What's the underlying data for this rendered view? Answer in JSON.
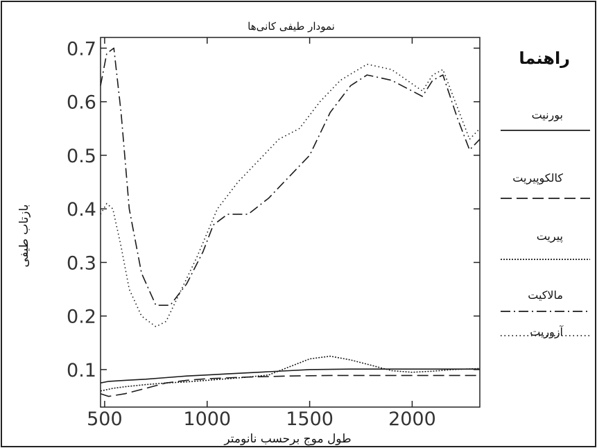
{
  "chart_data": {
    "type": "line",
    "title": "نمودار طیفی کانی‌ها",
    "xlabel": "طول موج برحسب نانومتر",
    "ylabel": "بازتاب طیفی",
    "xlim": [
      480,
      2330
    ],
    "ylim": [
      0.03,
      0.72
    ],
    "xticks": [
      500,
      1000,
      1500,
      2000
    ],
    "yticks": [
      0.1,
      0.2,
      0.3,
      0.4,
      0.5,
      0.6,
      0.7
    ],
    "xtick_labels": [
      "500",
      "1000",
      "1500",
      "2000"
    ],
    "ytick_labels": [
      "0.1",
      "0.2",
      "0.3",
      "0.4",
      "0.5",
      "0.6",
      "0.7"
    ],
    "legend_title": "راهنما",
    "legend_position": "right",
    "grid": false,
    "series": [
      {
        "name": "بورنیت",
        "style": "solid",
        "color": "#1a1a1a",
        "x": [
          480,
          520,
          600,
          700,
          800,
          900,
          1000,
          1100,
          1200,
          1300,
          1400,
          1500,
          1700,
          1900,
          2100,
          2330
        ],
        "y": [
          0.075,
          0.078,
          0.08,
          0.082,
          0.085,
          0.088,
          0.09,
          0.092,
          0.094,
          0.096,
          0.098,
          0.1,
          0.101,
          0.101,
          0.101,
          0.101
        ]
      },
      {
        "name": "کالکوپیریت",
        "style": "longdash",
        "color": "#1a1a1a",
        "x": [
          480,
          520,
          600,
          700,
          800,
          900,
          1000,
          1200,
          1400,
          1600,
          1800,
          2000,
          2330
        ],
        "y": [
          0.055,
          0.05,
          0.055,
          0.065,
          0.075,
          0.08,
          0.083,
          0.086,
          0.088,
          0.089,
          0.089,
          0.089,
          0.089
        ]
      },
      {
        "name": "پیریت",
        "style": "dotted",
        "color": "#1a1a1a",
        "x": [
          480,
          540,
          600,
          700,
          800,
          900,
          1000,
          1100,
          1200,
          1300,
          1400,
          1500,
          1600,
          1700,
          1800,
          1900,
          2000,
          2100,
          2200,
          2330
        ],
        "y": [
          0.06,
          0.065,
          0.068,
          0.072,
          0.075,
          0.077,
          0.08,
          0.083,
          0.086,
          0.09,
          0.105,
          0.12,
          0.125,
          0.118,
          0.108,
          0.098,
          0.095,
          0.097,
          0.1,
          0.102
        ]
      },
      {
        "name": "مالاکیت",
        "style": "dashdot",
        "color": "#1a1a1a",
        "x": [
          480,
          510,
          545,
          580,
          620,
          680,
          750,
          820,
          900,
          980,
          1030,
          1100,
          1200,
          1300,
          1400,
          1500,
          1600,
          1700,
          1780,
          1900,
          2050,
          2100,
          2150,
          2220,
          2280,
          2330
        ],
        "y": [
          0.63,
          0.69,
          0.7,
          0.58,
          0.4,
          0.28,
          0.22,
          0.22,
          0.26,
          0.32,
          0.37,
          0.39,
          0.39,
          0.42,
          0.46,
          0.5,
          0.58,
          0.63,
          0.65,
          0.64,
          0.61,
          0.64,
          0.65,
          0.57,
          0.51,
          0.53
        ]
      },
      {
        "name": "آزوریت",
        "style": "sparse-dotted",
        "color": "#1a1a1a",
        "x": [
          480,
          510,
          540,
          580,
          620,
          680,
          750,
          800,
          850,
          950,
          1050,
          1150,
          1250,
          1350,
          1450,
          1550,
          1650,
          1780,
          1900,
          2050,
          2100,
          2150,
          2230,
          2280,
          2330
        ],
        "y": [
          0.39,
          0.41,
          0.4,
          0.33,
          0.25,
          0.2,
          0.18,
          0.19,
          0.23,
          0.31,
          0.4,
          0.45,
          0.49,
          0.53,
          0.55,
          0.6,
          0.64,
          0.67,
          0.66,
          0.62,
          0.65,
          0.66,
          0.58,
          0.53,
          0.55
        ]
      }
    ]
  }
}
